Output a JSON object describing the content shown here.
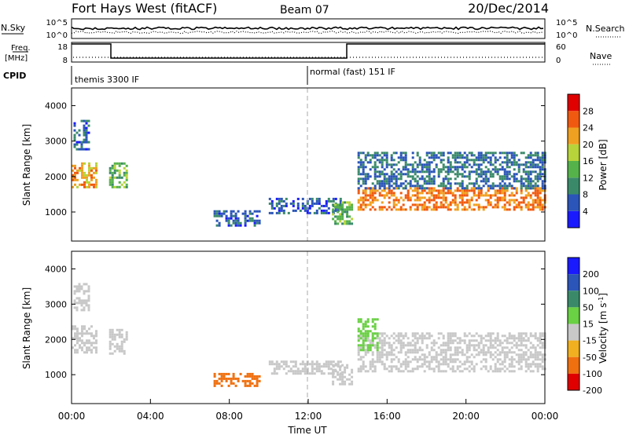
{
  "header": {
    "station": "Fort Hays West (fitACF)",
    "beam": "Beam 07",
    "date": "20/Dec/2014"
  },
  "strip_labels": {
    "nsky": "N.Sky",
    "nsky_tick_hi": "10^5",
    "nsky_tick_lo": "10^0",
    "nsearch": "N.Search",
    "nsearch_tick_hi": "10^5",
    "nsearch_tick_lo": "10^0",
    "freq_line1": "Freq.",
    "freq_line2": "[MHz]",
    "freq_tick_hi": "18",
    "freq_tick_lo": "8",
    "nave": "Nave",
    "nave_tick_hi": "60",
    "nave_tick_lo": "0",
    "cpid": "CPID",
    "cpid_mode1": "themis 3300 IF",
    "cpid_mode2": "normal (fast) 151 IF"
  },
  "chart_data": [
    {
      "type": "heatmap",
      "panel": "power",
      "ylabel": "Slant Range [km]",
      "colorbar_label": "Power [dB]",
      "xlim_hours": [
        0,
        24
      ],
      "ylim_km": [
        180,
        4500
      ],
      "ytick_values": [
        1000,
        2000,
        3000,
        4000
      ],
      "colorbar_ticks": [
        4,
        8,
        12,
        16,
        20,
        24,
        28
      ],
      "colorbar_range": [
        0,
        32
      ],
      "colors": [
        "#1a1aff",
        "#2b55b8",
        "#3a8a6a",
        "#55b24a",
        "#b7d43a",
        "#f0a020",
        "#f05a10",
        "#e00000"
      ],
      "echo_regions": [
        {
          "t0": 0.0,
          "t1": 1.3,
          "r0": 1700,
          "r1": 2400,
          "value": 22
        },
        {
          "t0": 0.1,
          "t1": 0.9,
          "r0": 2800,
          "r1": 3600,
          "value": 6
        },
        {
          "t0": 1.9,
          "t1": 2.8,
          "r0": 1700,
          "r1": 2400,
          "value": 14
        },
        {
          "t0": 7.2,
          "t1": 9.5,
          "r0": 650,
          "r1": 1050,
          "value": 6
        },
        {
          "t0": 10.0,
          "t1": 13.6,
          "r0": 1000,
          "r1": 1400,
          "value": 6
        },
        {
          "t0": 13.2,
          "t1": 14.2,
          "r0": 700,
          "r1": 1300,
          "value": 14
        },
        {
          "t0": 14.5,
          "t1": 24.0,
          "r0": 1100,
          "r1": 1700,
          "value": 24
        },
        {
          "t0": 14.5,
          "t1": 24.0,
          "r0": 1700,
          "r1": 2700,
          "value": 8
        }
      ]
    },
    {
      "type": "heatmap",
      "panel": "velocity",
      "ylabel": "Slant Range [km]",
      "colorbar_label": "Velocity [m s^-1]",
      "xlabel": "Time UT",
      "xlim_hours": [
        0,
        24
      ],
      "ylim_km": [
        180,
        4500
      ],
      "ytick_values": [
        1000,
        2000,
        3000,
        4000
      ],
      "x_ticks": [
        "00:00",
        "04:00",
        "08:00",
        "12:00",
        "16:00",
        "20:00",
        "00:00"
      ],
      "x_tick_hours": [
        0,
        4,
        8,
        12,
        16,
        20,
        24
      ],
      "colorbar_ticks": [
        200,
        100,
        50,
        15,
        -15,
        -50,
        -100,
        -200
      ],
      "colors": [
        "#1a1aff",
        "#2b55b8",
        "#3a8a6a",
        "#6ad044",
        "#c8c8c8",
        "#f0b020",
        "#f07010",
        "#e00000"
      ],
      "echo_regions": [
        {
          "t0": 0.0,
          "t1": 1.3,
          "r0": 1600,
          "r1": 2400,
          "value": 0
        },
        {
          "t0": 0.1,
          "t1": 0.9,
          "r0": 2800,
          "r1": 3600,
          "value": 0
        },
        {
          "t0": 1.9,
          "t1": 2.8,
          "r0": 1600,
          "r1": 2300,
          "value": 0
        },
        {
          "t0": 7.2,
          "t1": 9.5,
          "r0": 650,
          "r1": 1050,
          "value": -60
        },
        {
          "t0": 10.0,
          "t1": 13.6,
          "r0": 1000,
          "r1": 1400,
          "value": 0
        },
        {
          "t0": 13.2,
          "t1": 14.2,
          "r0": 700,
          "r1": 1300,
          "value": 0
        },
        {
          "t0": 14.5,
          "t1": 24.0,
          "r0": 1100,
          "r1": 2200,
          "value": 0
        },
        {
          "t0": 14.5,
          "t1": 15.5,
          "r0": 1700,
          "r1": 2600,
          "value": 30
        }
      ]
    }
  ]
}
